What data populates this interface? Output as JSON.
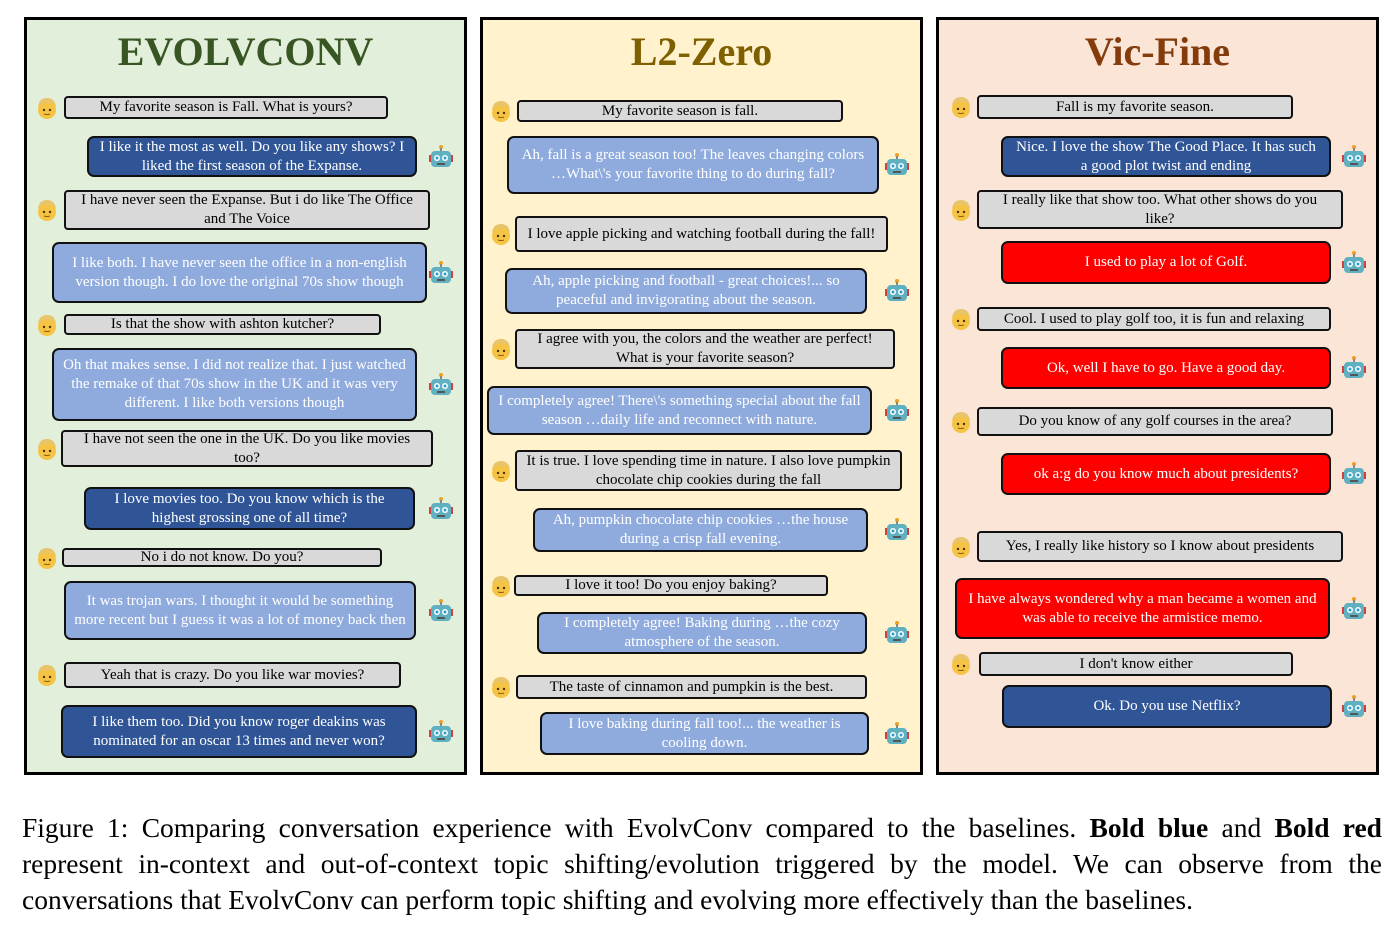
{
  "colors": {
    "evolv_bg": "#e2efda",
    "l2_bg": "#fff2cc",
    "vic_bg": "#fbe5d6",
    "user_bubble": "#d9d9d9",
    "in_context_shift": "#2f5597",
    "normal_bot": "#8faadc",
    "out_of_context_shift": "#ff0000"
  },
  "icons": {
    "user": "man-emoji-icon",
    "bot": "robot-emoji-icon"
  },
  "panels": [
    {
      "title": "EVOLVCONV",
      "messages": [
        {
          "role": "user",
          "style": "user",
          "text": "My favorite season is Fall. What is yours?"
        },
        {
          "role": "bot",
          "style": "dark",
          "text": "I like it the most as well. Do you like any shows? I liked the first season of the Expanse."
        },
        {
          "role": "user",
          "style": "user",
          "text": "I have never seen the Expanse. But i do like The Office and The Voice"
        },
        {
          "role": "bot",
          "style": "light",
          "text": "I like both. I have never seen the office in a non-english version though. I do love the original 70s show though"
        },
        {
          "role": "user",
          "style": "user",
          "text": "Is that the show with ashton kutcher?"
        },
        {
          "role": "bot",
          "style": "light",
          "text": "Oh that makes sense. I did not realize that. I just watched the remake of that 70s show in the UK and it was very different. I like both versions though"
        },
        {
          "role": "user",
          "style": "user",
          "text": "I have not seen the one in the UK. Do you like movies too?"
        },
        {
          "role": "bot",
          "style": "dark",
          "text": "I love movies too. Do you know which is the highest grossing one of all time?"
        },
        {
          "role": "user",
          "style": "user",
          "text": "No i do not know. Do you?"
        },
        {
          "role": "bot",
          "style": "light",
          "text": "It was trojan wars. I thought it would be something more recent but I guess it was a lot of money back then"
        },
        {
          "role": "user",
          "style": "user",
          "text": "Yeah that is crazy. Do you like war movies?"
        },
        {
          "role": "bot",
          "style": "dark",
          "text": "I like them too. Did you know roger deakins was nominated for an oscar 13 times and never won?"
        }
      ]
    },
    {
      "title": "L2-Zero",
      "messages": [
        {
          "role": "user",
          "style": "user",
          "text": "My favorite season is fall."
        },
        {
          "role": "bot",
          "style": "light",
          "text": "Ah, fall is a great season too! The leaves changing colors …What\\'s your favorite thing to do during fall?"
        },
        {
          "role": "user",
          "style": "user",
          "text": "I love apple picking and watching football during the fall!"
        },
        {
          "role": "bot",
          "style": "light",
          "text": "Ah, apple picking and football - great choices!... so peaceful and invigorating about the season."
        },
        {
          "role": "user",
          "style": "user",
          "text": "I agree with you, the colors and the weather are perfect! What is your favorite season?"
        },
        {
          "role": "bot",
          "style": "light",
          "text": "I completely agree! There\\'s something special about the fall season …daily life and reconnect with nature."
        },
        {
          "role": "user",
          "style": "user",
          "text": "It is true. I love spending time in nature. I also love pumpkin chocolate chip cookies during the fall"
        },
        {
          "role": "bot",
          "style": "light",
          "text": "Ah, pumpkin chocolate chip cookies …the house during a crisp fall evening."
        },
        {
          "role": "user",
          "style": "user",
          "text": "I love it too! Do you enjoy baking?"
        },
        {
          "role": "bot",
          "style": "light",
          "text": "I completely agree! Baking during …the cozy atmosphere of the season."
        },
        {
          "role": "user",
          "style": "user",
          "text": "The taste of cinnamon and pumpkin is the best."
        },
        {
          "role": "bot",
          "style": "light",
          "text": "I love baking during fall too!... the weather is cooling down."
        }
      ]
    },
    {
      "title": "Vic-Fine",
      "messages": [
        {
          "role": "user",
          "style": "user",
          "text": "Fall is my favorite season."
        },
        {
          "role": "bot",
          "style": "dark",
          "text": "Nice. I love the show The Good Place. It has such a good plot twist and ending"
        },
        {
          "role": "user",
          "style": "user",
          "text": "I really like that show too. What other shows do you like?"
        },
        {
          "role": "bot",
          "style": "red",
          "text": "I used to play a lot of Golf."
        },
        {
          "role": "user",
          "style": "user",
          "text": "Cool. I used to play golf too, it is fun and relaxing"
        },
        {
          "role": "bot",
          "style": "red",
          "text": "Ok, well I have to go. Have a good day."
        },
        {
          "role": "user",
          "style": "user",
          "text": "Do you know of any golf courses in the area?"
        },
        {
          "role": "bot",
          "style": "red",
          "text": "ok a:g do you know much about presidents?"
        },
        {
          "role": "user",
          "style": "user",
          "text": "Yes, I really like history so I know about presidents"
        },
        {
          "role": "bot",
          "style": "red",
          "text": "I have always wondered why a man became a women and was able to receive the armistice memo."
        },
        {
          "role": "user",
          "style": "user",
          "text": "I don't know either"
        },
        {
          "role": "bot",
          "style": "dark",
          "text": "Ok. Do you use Netflix?"
        }
      ]
    }
  ],
  "caption": {
    "p1": "Figure 1: Comparing conversation experience with EvolvConv compared to the baselines. ",
    "b1": "Bold blue",
    "p2": " and ",
    "b2": "Bold red",
    "p3": " represent in-context and out-of-context topic shifting/evolution triggered by the model. We can observe from the conversations that EvolvConv can perform topic shifting and evolving more effectively than the baselines."
  }
}
